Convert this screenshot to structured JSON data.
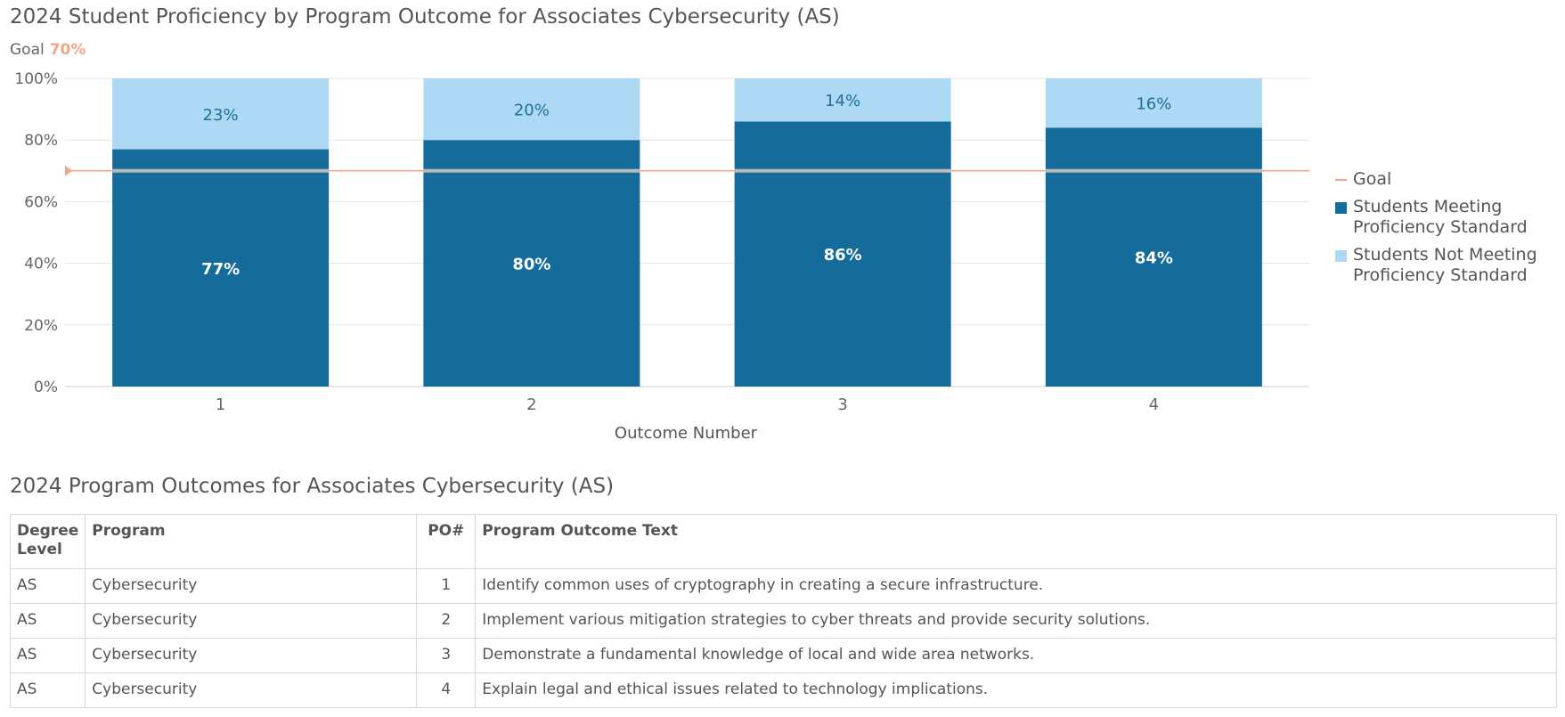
{
  "chart_title": "2024 Student Proficiency by Program Outcome for Associates Cybersecurity (AS)",
  "goal_label": "Goal",
  "goal_value_label": "70%",
  "chart_data": {
    "type": "bar",
    "stacked": true,
    "title": "2024 Student Proficiency by Program Outcome for Associates Cybersecurity (AS)",
    "xlabel": "Outcome Number",
    "ylabel": "",
    "categories": [
      "1",
      "2",
      "3",
      "4"
    ],
    "series": [
      {
        "name": "Students Meeting Proficiency Standard",
        "values": [
          77,
          80,
          86,
          84
        ],
        "labels": [
          "77%",
          "80%",
          "86%",
          "84%"
        ],
        "color": "#156b99"
      },
      {
        "name": "Students Not Meeting Proficiency Standard",
        "values": [
          23,
          20,
          14,
          16
        ],
        "labels": [
          "23%",
          "20%",
          "14%",
          "16%"
        ],
        "color": "#aed9f4"
      }
    ],
    "goal": {
      "name": "Goal",
      "value": 70,
      "color": "#f4a488"
    },
    "ylim": [
      0,
      100
    ],
    "yticks": [
      "0%",
      "20%",
      "40%",
      "60%",
      "80%",
      "100%"
    ],
    "grid": true,
    "legend_position": "right"
  },
  "legend": {
    "goal": "Goal",
    "meeting_line1": "Students Meeting",
    "meeting_line2": "Proficiency Standard",
    "not_meeting_line1": "Students Not Meeting",
    "not_meeting_line2": "Proficiency Standard"
  },
  "table_title": "2024 Program Outcomes for Associates Cybersecurity (AS)",
  "table": {
    "headers": {
      "degree_line1": "Degree",
      "degree_line2": "Level",
      "program": "Program",
      "po": "PO#",
      "text": "Program Outcome Text"
    },
    "rows": [
      {
        "degree": "AS",
        "program": "Cybersecurity",
        "po": "1",
        "text": "Identify common uses of cryptography in creating a secure infrastructure."
      },
      {
        "degree": "AS",
        "program": "Cybersecurity",
        "po": "2",
        "text": "Implement various mitigation strategies to cyber threats and provide security solutions."
      },
      {
        "degree": "AS",
        "program": "Cybersecurity",
        "po": "3",
        "text": "Demonstrate a fundamental knowledge of local and wide area networks."
      },
      {
        "degree": "AS",
        "program": "Cybersecurity",
        "po": "4",
        "text": "Explain legal and ethical issues related to technology implications."
      }
    ]
  }
}
